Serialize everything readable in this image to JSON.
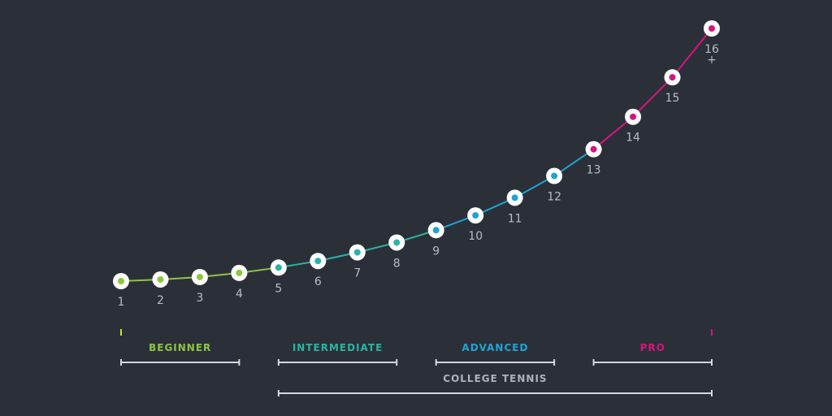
{
  "chart_data": {
    "type": "line",
    "x": [
      1,
      2,
      3,
      4,
      5,
      6,
      7,
      8,
      9,
      10,
      11,
      12,
      13,
      14,
      15,
      16
    ],
    "point_labels": [
      "1",
      "2",
      "3",
      "4",
      "5",
      "6",
      "7",
      "8",
      "9",
      "10",
      "11",
      "12",
      "13",
      "14",
      "15",
      "16+"
    ],
    "values": [
      0,
      0.4,
      1.0,
      2.0,
      3.3,
      4.9,
      7.0,
      9.4,
      12.4,
      16.0,
      20.3,
      25.6,
      32.1,
      40.0,
      49.6,
      61.5
    ],
    "levels": [
      {
        "label": "BEGINNER",
        "from": 1,
        "to": 4,
        "color": "#8dc63f"
      },
      {
        "label": "INTERMEDIATE",
        "from": 5,
        "to": 8,
        "color": "#2ab3a6"
      },
      {
        "label": "ADVANCED",
        "from": 9,
        "to": 12,
        "color": "#1fa3d4"
      },
      {
        "label": "PRO",
        "from": 13,
        "to": 16,
        "color": "#d7147d"
      }
    ],
    "group": {
      "label": "COLLEGE TENNIS",
      "from": 5,
      "to": 16,
      "color": "#aeb3bb"
    },
    "gradient_colors": [
      "#c8e02a",
      "#22b8a5",
      "#1e9fc9",
      "#d7147d"
    ],
    "title": "",
    "xlabel": "",
    "ylabel": ""
  }
}
